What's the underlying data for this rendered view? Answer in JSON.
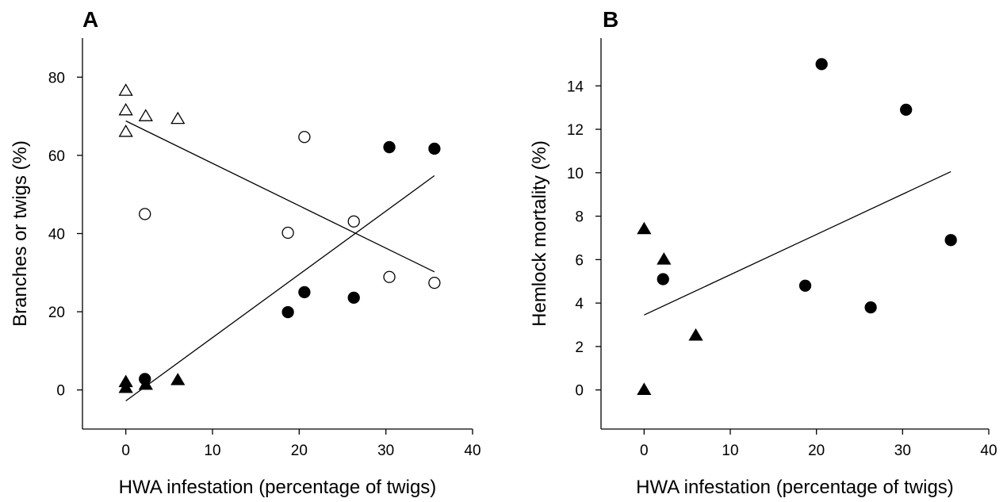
{
  "chart_data": [
    {
      "panel": "A",
      "type": "scatter",
      "xlabel": "HWA infestation (percentage of twigs)",
      "ylabel": "Branches or twigs (%)",
      "xlim": [
        -5,
        40
      ],
      "ylim": [
        -10,
        90
      ],
      "xticks": [
        0,
        10,
        20,
        30,
        40
      ],
      "yticks": [
        0,
        20,
        40,
        60,
        80
      ],
      "series": [
        {
          "marker": "open-triangle",
          "points": [
            [
              0,
              76.5
            ],
            [
              0,
              71.5
            ],
            [
              0,
              66
            ],
            [
              2.3,
              70
            ],
            [
              6,
              69.3
            ]
          ]
        },
        {
          "marker": "open-circle",
          "points": [
            [
              2.2,
              45
            ],
            [
              18.7,
              40.2
            ],
            [
              20.6,
              64.7
            ],
            [
              26.3,
              43.1
            ],
            [
              30.4,
              28.9
            ],
            [
              35.6,
              27.4
            ]
          ]
        },
        {
          "marker": "filled-triangle",
          "points": [
            [
              0,
              2
            ],
            [
              0,
              0.5
            ],
            [
              2.3,
              1.3
            ],
            [
              6,
              2.5
            ]
          ]
        },
        {
          "marker": "filled-circle",
          "points": [
            [
              2.2,
              2.8
            ],
            [
              18.7,
              19.9
            ],
            [
              20.6,
              25
            ],
            [
              26.3,
              23.6
            ],
            [
              30.4,
              62.1
            ],
            [
              35.6,
              61.7
            ]
          ]
        }
      ],
      "fit_lines": [
        {
          "x": [
            0,
            35.6
          ],
          "y": [
            68.8,
            30.2
          ]
        },
        {
          "x": [
            0,
            35.6
          ],
          "y": [
            -2.8,
            54.8
          ]
        }
      ]
    },
    {
      "panel": "B",
      "type": "scatter",
      "xlabel": "HWA infestation (percentage of twigs)",
      "ylabel": "Hemlock mortality (%)",
      "xlim": [
        -5,
        40
      ],
      "ylim": [
        -1.8,
        16.2
      ],
      "xticks": [
        0,
        10,
        20,
        30,
        40
      ],
      "yticks": [
        0,
        2,
        4,
        6,
        8,
        10,
        12,
        14
      ],
      "series": [
        {
          "marker": "filled-triangle",
          "points": [
            [
              0,
              7.4
            ],
            [
              2.3,
              6
            ],
            [
              6,
              2.5
            ],
            [
              0,
              0
            ]
          ]
        },
        {
          "marker": "filled-circle",
          "points": [
            [
              2.2,
              5.1
            ],
            [
              18.7,
              4.8
            ],
            [
              20.6,
              15
            ],
            [
              26.3,
              3.8
            ],
            [
              30.4,
              12.9
            ],
            [
              35.6,
              6.9
            ]
          ]
        }
      ],
      "fit_lines": [
        {
          "x": [
            0,
            35.6
          ],
          "y": [
            3.45,
            10.05
          ]
        }
      ]
    }
  ]
}
